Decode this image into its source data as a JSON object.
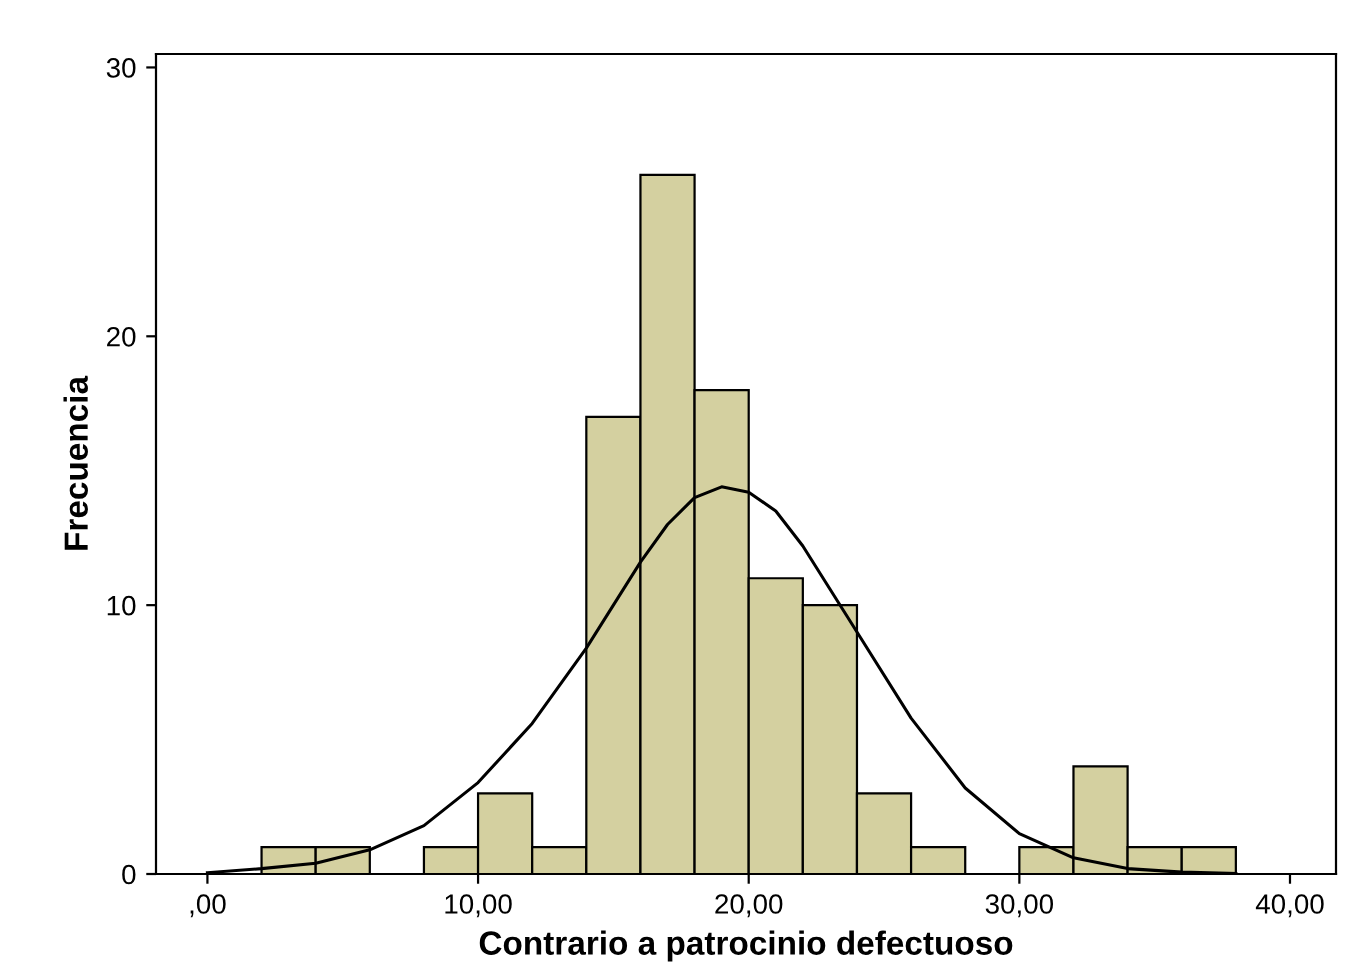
{
  "chart_data": {
    "type": "histogram",
    "xlabel": "Contrario a patrocinio defectuoso",
    "ylabel": "Frecuencia",
    "bins": [
      2,
      4,
      6,
      8,
      10,
      12,
      14,
      16,
      18,
      20,
      22,
      24,
      26,
      28,
      30,
      32,
      34,
      36,
      38
    ],
    "values": [
      1,
      1,
      0,
      1,
      3,
      1,
      17,
      26,
      18,
      11,
      10,
      3,
      1,
      0,
      1,
      4,
      1,
      1
    ],
    "color": "#d4d0a0",
    "series": [
      {
        "type": "line",
        "color": "#000000",
        "x": [
          0,
          2,
          4,
          6,
          8,
          10,
          12,
          14,
          16,
          17,
          18,
          19,
          20,
          21,
          22,
          24,
          26,
          28,
          30,
          32,
          34,
          36,
          38
        ],
        "values": [
          0.05,
          0.2,
          0.4,
          0.9,
          1.8,
          3.4,
          5.6,
          8.4,
          11.6,
          13.0,
          14.0,
          14.4,
          14.2,
          13.5,
          12.2,
          9.0,
          5.8,
          3.2,
          1.5,
          0.6,
          0.2,
          0.07,
          0.02
        ]
      }
    ],
    "xlim": [
      -1.9,
      41.7
    ],
    "ylim": [
      0,
      30.5
    ],
    "xticks": [
      {
        "value": 0,
        "label": ",00"
      },
      {
        "value": 10,
        "label": "10,00"
      },
      {
        "value": 20,
        "label": "20,00"
      },
      {
        "value": 30,
        "label": "30,00"
      },
      {
        "value": 40,
        "label": "40,00"
      }
    ],
    "yticks": [
      0,
      10,
      20,
      30
    ],
    "grid": false,
    "legend": false
  }
}
